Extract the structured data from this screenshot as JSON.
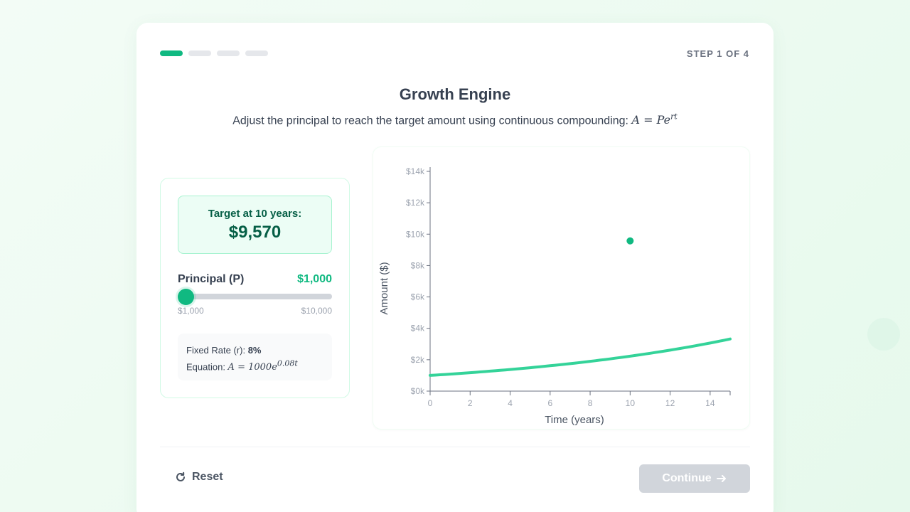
{
  "progress": {
    "total_steps": 4,
    "current_step": 1
  },
  "step_label": "STEP 1 OF 4",
  "title": "Growth Engine",
  "subtitle": {
    "text": "Adjust the principal to reach the target amount using continuous compounding:",
    "formula_lhs": "A",
    "formula_eq": " = ",
    "formula_base": "Pe",
    "formula_exp": "rt"
  },
  "target": {
    "label": "Target at 10 years:",
    "value": "$9,570"
  },
  "principal": {
    "label": "Principal (P)",
    "value": "$1,000",
    "min_label": "$1,000",
    "max_label": "$10,000",
    "fraction": 0.0
  },
  "info": {
    "rate_label": "Fixed Rate (r): ",
    "rate_value": "8%",
    "equation_label": "Equation: ",
    "equation_lhs": "A",
    "equation_eq": " = ",
    "equation_base": "1000e",
    "equation_exp": "0.08t"
  },
  "chart_data": {
    "type": "line",
    "xlabel": "Time (years)",
    "ylabel": "Amount ($)",
    "xlim": [
      0,
      15
    ],
    "ylim": [
      0,
      14000
    ],
    "x_ticks": [
      0,
      2,
      4,
      6,
      8,
      10,
      12,
      14
    ],
    "y_ticks": [
      0,
      2000,
      4000,
      6000,
      8000,
      10000,
      12000,
      14000
    ],
    "y_tick_labels": [
      "$0k",
      "$2k",
      "$4k",
      "$6k",
      "$8k",
      "$10k",
      "$12k",
      "$14k"
    ],
    "series": [
      {
        "principal": 1000,
        "rate": 0.08,
        "x_range": [
          0,
          15
        ],
        "color": "#34d399"
      }
    ],
    "target_point": {
      "x": 10,
      "y": 9570,
      "color": "#10b981"
    }
  },
  "footer": {
    "reset_label": "Reset",
    "continue_label": "Continue"
  },
  "colors": {
    "accent": "#10b981",
    "disabled": "#d1d5db"
  }
}
